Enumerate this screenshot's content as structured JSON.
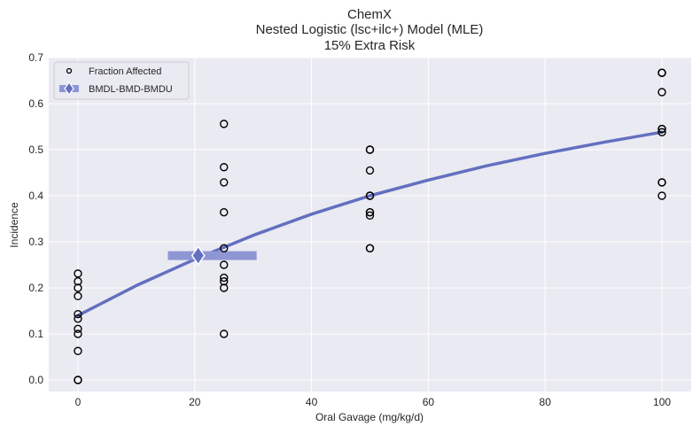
{
  "chart_data": {
    "type": "scatter",
    "title": [
      "ChemX",
      "Nested Logistic (lsc+ilc+) Model (MLE)",
      "15% Extra Risk"
    ],
    "xlabel": "Oral Gavage (mg/kg/d)",
    "ylabel": "Incidence",
    "xlim": [
      -5,
      105
    ],
    "ylim": [
      -0.025,
      0.7
    ],
    "xticks": [
      0,
      20,
      40,
      60,
      80,
      100
    ],
    "xtick_labels": [
      "0",
      "20",
      "40",
      "60",
      "80",
      "100"
    ],
    "yticks": [
      0.0,
      0.1,
      0.2,
      0.3,
      0.4,
      0.5,
      0.6,
      0.7
    ],
    "ytick_labels": [
      "0.0",
      "0.1",
      "0.2",
      "0.3",
      "0.4",
      "0.5",
      "0.6",
      "0.7"
    ],
    "grid": true,
    "legend_position": "top-left",
    "colors": {
      "background": "#eaeaf2",
      "grid": "#ffffff",
      "model": "#6370c0",
      "bmd": "#8f96d4",
      "points": "#000000"
    },
    "series": [
      {
        "name": "Fraction Affected",
        "kind": "scatter",
        "x": [
          0,
          0,
          0,
          0,
          0,
          0,
          0,
          0,
          0,
          0,
          0,
          25,
          25,
          25,
          25,
          25,
          25,
          25,
          25,
          25,
          25,
          50,
          50,
          50,
          50,
          50,
          50,
          50,
          50,
          50,
          50,
          100,
          100,
          100,
          100,
          100,
          100,
          100,
          100,
          100,
          100
        ],
        "y": [
          0.231,
          0.214,
          0.2,
          0.182,
          0.143,
          0.133,
          0.111,
          0.1,
          0.063,
          0.0,
          0.0,
          0.556,
          0.462,
          0.429,
          0.364,
          0.286,
          0.25,
          0.222,
          0.214,
          0.2,
          0.1,
          0.5,
          0.5,
          0.455,
          0.4,
          0.364,
          0.364,
          0.357,
          0.286,
          0.286,
          0.4,
          0.667,
          0.667,
          0.625,
          0.545,
          0.538,
          0.429,
          0.429,
          0.4,
          0.545,
          0.667
        ]
      },
      {
        "name": "Model",
        "kind": "line",
        "x": [
          0,
          10,
          20,
          30,
          40,
          50,
          60,
          70,
          80,
          90,
          100
        ],
        "y": [
          0.14,
          0.205,
          0.262,
          0.314,
          0.36,
          0.4,
          0.434,
          0.465,
          0.492,
          0.516,
          0.538
        ]
      },
      {
        "name": "BMDL-BMD-BMDU",
        "kind": "interval",
        "bmdl": 15.4,
        "bmd": 20.6,
        "bmdu": 30.6,
        "y": 0.27
      }
    ]
  }
}
